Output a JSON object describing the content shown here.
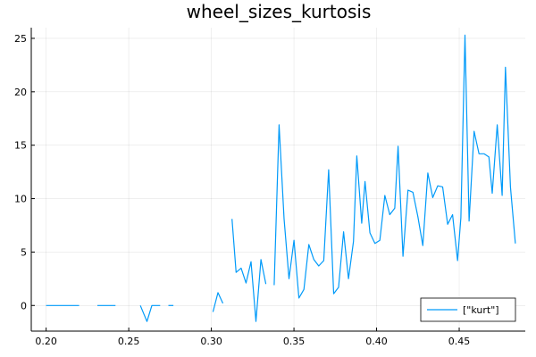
{
  "chart_data": {
    "type": "line",
    "title": "wheel_sizes_kurtosis",
    "xlabel": "",
    "ylabel": "",
    "xlim": [
      0.191,
      0.49
    ],
    "ylim": [
      -2.4,
      26.0
    ],
    "xticks": [
      0.2,
      0.25,
      0.3,
      0.35,
      0.4,
      0.45
    ],
    "xtick_labels": [
      "0.20",
      "0.25",
      "0.30",
      "0.35",
      "0.40",
      "0.45"
    ],
    "yticks": [
      0,
      5,
      10,
      15,
      20,
      25
    ],
    "ytick_labels": [
      "0",
      "5",
      "10",
      "15",
      "20",
      "25"
    ],
    "grid": true,
    "legend_position": "bottom-right",
    "series": [
      {
        "name": "[\"kurt\"]",
        "color": "#009af9",
        "segments": [
          [
            [
              0.2,
              0.0
            ],
            [
              0.22,
              0.0
            ]
          ],
          [
            [
              0.231,
              0.0
            ],
            [
              0.242,
              0.0
            ]
          ],
          [
            [
              0.257,
              0.0
            ],
            [
              0.261,
              -1.5
            ],
            [
              0.264,
              0.0
            ],
            [
              0.269,
              0.0
            ]
          ],
          [
            [
              0.274,
              0.0
            ],
            [
              0.277,
              0.0
            ]
          ],
          [
            [
              0.301,
              -0.6
            ],
            [
              0.304,
              1.2
            ],
            [
              0.307,
              0.2
            ]
          ],
          [
            [
              0.3125,
              8.1
            ],
            [
              0.315,
              3.1
            ],
            [
              0.318,
              3.5
            ],
            [
              0.321,
              2.1
            ],
            [
              0.324,
              4.1
            ],
            [
              0.327,
              -1.5
            ],
            [
              0.33,
              4.3
            ],
            [
              0.333,
              2.0
            ]
          ],
          [
            [
              0.338,
              1.9
            ],
            [
              0.341,
              16.9
            ],
            [
              0.344,
              8.1
            ],
            [
              0.347,
              2.5
            ],
            [
              0.35,
              6.1
            ],
            [
              0.353,
              0.7
            ],
            [
              0.356,
              1.5
            ],
            [
              0.359,
              5.7
            ],
            [
              0.362,
              4.3
            ],
            [
              0.365,
              3.7
            ],
            [
              0.368,
              4.2
            ],
            [
              0.371,
              12.7
            ],
            [
              0.374,
              1.1
            ],
            [
              0.377,
              1.7
            ],
            [
              0.38,
              6.9
            ],
            [
              0.383,
              2.5
            ],
            [
              0.386,
              6.0
            ],
            [
              0.388,
              14.0
            ],
            [
              0.391,
              7.7
            ],
            [
              0.393,
              11.6
            ],
            [
              0.396,
              6.8
            ],
            [
              0.399,
              5.8
            ],
            [
              0.402,
              6.1
            ],
            [
              0.405,
              10.3
            ],
            [
              0.408,
              8.5
            ],
            [
              0.411,
              9.1
            ],
            [
              0.413,
              14.9
            ],
            [
              0.416,
              4.6
            ],
            [
              0.419,
              10.8
            ],
            [
              0.422,
              10.6
            ],
            [
              0.425,
              8.3
            ],
            [
              0.428,
              5.6
            ],
            [
              0.431,
              12.4
            ],
            [
              0.434,
              10.1
            ],
            [
              0.437,
              11.2
            ],
            [
              0.44,
              11.1
            ],
            [
              0.443,
              7.6
            ],
            [
              0.446,
              8.5
            ],
            [
              0.449,
              4.2
            ],
            [
              0.451,
              8.2
            ],
            [
              0.4535,
              25.3
            ],
            [
              0.456,
              7.9
            ],
            [
              0.459,
              16.3
            ],
            [
              0.462,
              14.2
            ],
            [
              0.465,
              14.2
            ],
            [
              0.468,
              13.9
            ],
            [
              0.47,
              10.5
            ],
            [
              0.473,
              16.9
            ],
            [
              0.476,
              10.3
            ],
            [
              0.478,
              22.3
            ],
            [
              0.481,
              11.1
            ],
            [
              0.484,
              5.8
            ]
          ]
        ]
      }
    ]
  }
}
